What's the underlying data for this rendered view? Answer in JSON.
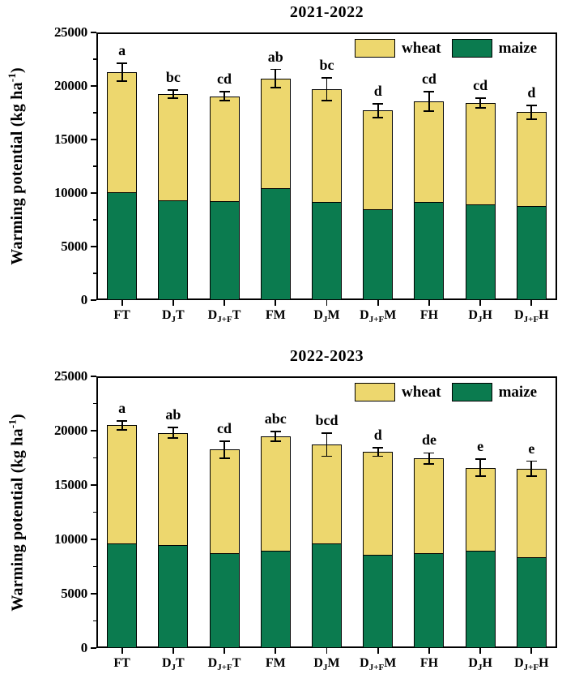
{
  "figure": {
    "wheat_color": "#EDD76E",
    "maize_color": "#0B7B4F",
    "axis_color": "#000000"
  },
  "chart_data": [
    {
      "type": "bar",
      "stacked": true,
      "title": "2021-2022",
      "ylabel": {
        "pre": "Warming potential (kg ha",
        "sup": "-1",
        "post": ")"
      },
      "ylim": [
        0,
        25000
      ],
      "ytick_step": 5000,
      "yminor_step": 2500,
      "yticks": [
        "0",
        "5000",
        "10000",
        "15000",
        "20000",
        "25000"
      ],
      "grid": false,
      "legend": [
        "wheat",
        "maize"
      ],
      "legend_position": "top-right",
      "categories": [
        [
          {
            "t": "FT",
            "sub": false
          }
        ],
        [
          {
            "t": "D",
            "sub": false
          },
          {
            "t": "J",
            "sub": true
          },
          {
            "t": "T",
            "sub": false
          }
        ],
        [
          {
            "t": "D",
            "sub": false
          },
          {
            "t": "J+F",
            "sub": true
          },
          {
            "t": "T",
            "sub": false
          }
        ],
        [
          {
            "t": "FM",
            "sub": false
          }
        ],
        [
          {
            "t": "D",
            "sub": false
          },
          {
            "t": "J",
            "sub": true
          },
          {
            "t": "M",
            "sub": false
          }
        ],
        [
          {
            "t": "D",
            "sub": false
          },
          {
            "t": "J+F",
            "sub": true
          },
          {
            "t": "M",
            "sub": false
          }
        ],
        [
          {
            "t": "FH",
            "sub": false
          }
        ],
        [
          {
            "t": "D",
            "sub": false
          },
          {
            "t": "J",
            "sub": true
          },
          {
            "t": "H",
            "sub": false
          }
        ],
        [
          {
            "t": "D",
            "sub": false
          },
          {
            "t": "J+F",
            "sub": true
          },
          {
            "t": "H",
            "sub": false
          }
        ]
      ],
      "series": [
        {
          "name": "maize",
          "color": "#0B7B4F",
          "values": [
            10100,
            9300,
            9250,
            10450,
            9150,
            8450,
            9150,
            8950,
            8800
          ]
        },
        {
          "name": "wheat",
          "color": "#EDD76E",
          "values": [
            11200,
            9950,
            9800,
            10250,
            10550,
            9250,
            9400,
            9450,
            8750
          ]
        }
      ],
      "totals": [
        21300,
        19250,
        19050,
        20700,
        19700,
        17700,
        18550,
        18400,
        17550
      ],
      "errors": [
        850,
        400,
        400,
        850,
        1050,
        650,
        900,
        450,
        650
      ],
      "sig_letters": [
        "a",
        "bc",
        "cd",
        "ab",
        "bc",
        "d",
        "cd",
        "cd",
        "d"
      ]
    },
    {
      "type": "bar",
      "stacked": true,
      "title": "2022-2023",
      "ylabel": {
        "pre": "Warming potential (kg ha",
        "sup": "-1",
        "post": ")"
      },
      "ylim": [
        0,
        25000
      ],
      "ytick_step": 5000,
      "yminor_step": 2500,
      "yticks": [
        "0",
        "5000",
        "10000",
        "15000",
        "20000",
        "25000"
      ],
      "grid": false,
      "legend": [
        "wheat",
        "maize"
      ],
      "legend_position": "top-right",
      "categories": [
        [
          {
            "t": "FT",
            "sub": false
          }
        ],
        [
          {
            "t": "D",
            "sub": false
          },
          {
            "t": "J",
            "sub": true
          },
          {
            "t": "T",
            "sub": false
          }
        ],
        [
          {
            "t": "D",
            "sub": false
          },
          {
            "t": "J+F",
            "sub": true
          },
          {
            "t": "T",
            "sub": false
          }
        ],
        [
          {
            "t": "FM",
            "sub": false
          }
        ],
        [
          {
            "t": "D",
            "sub": false
          },
          {
            "t": "J",
            "sub": true
          },
          {
            "t": "M",
            "sub": false
          }
        ],
        [
          {
            "t": "D",
            "sub": false
          },
          {
            "t": "J+F",
            "sub": true
          },
          {
            "t": "M",
            "sub": false
          }
        ],
        [
          {
            "t": "FH",
            "sub": false
          }
        ],
        [
          {
            "t": "D",
            "sub": false
          },
          {
            "t": "J",
            "sub": true
          },
          {
            "t": "H",
            "sub": false
          }
        ],
        [
          {
            "t": "D",
            "sub": false
          },
          {
            "t": "J+F",
            "sub": true
          },
          {
            "t": "H",
            "sub": false
          }
        ]
      ],
      "series": [
        {
          "name": "maize",
          "color": "#0B7B4F",
          "values": [
            9650,
            9500,
            8750,
            8950,
            9600,
            8550,
            8750,
            8950,
            8350
          ]
        },
        {
          "name": "wheat",
          "color": "#EDD76E",
          "values": [
            10850,
            10300,
            9500,
            10550,
            9100,
            9500,
            8700,
            7650,
            8150
          ]
        }
      ],
      "totals": [
        20500,
        19800,
        18250,
        19500,
        18700,
        18050,
        17450,
        16600,
        16500
      ],
      "errors": [
        400,
        500,
        800,
        450,
        1050,
        400,
        500,
        800,
        700
      ],
      "sig_letters": [
        "a",
        "ab",
        "cd",
        "abc",
        "bcd",
        "d",
        "de",
        "e",
        "e"
      ]
    }
  ]
}
